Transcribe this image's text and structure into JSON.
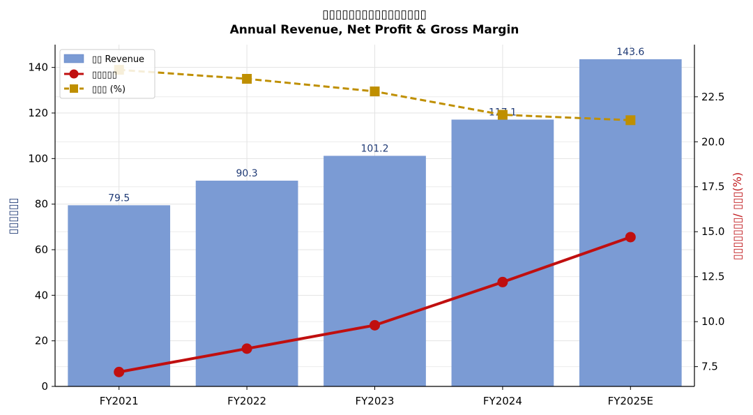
{
  "chart_data": {
    "type": "bar",
    "title": "▯▯▯▯▯▯▯▯▯▯▯▯▯▯▯▯",
    "subtitle": "Annual Revenue, Net Profit & Gross Margin",
    "categories": [
      "FY2021",
      "FY2022",
      "FY2023",
      "FY2024",
      "FY2025E"
    ],
    "ylabel_left": "▯▯▯▯▯▯",
    "ylabel_right": "▯▯▯▯▯▯▯/ ▯▯▯(%)",
    "ylim_left": [
      0,
      150
    ],
    "ylim_right": [
      6.4,
      25.4
    ],
    "yticks_left": [
      0,
      20,
      40,
      60,
      80,
      100,
      120,
      140
    ],
    "yticks_right": [
      7.5,
      10.0,
      12.5,
      15.0,
      17.5,
      20.0,
      22.5
    ],
    "grid": true,
    "legend_position": "top-left",
    "series": [
      {
        "name": "▯▯ Revenue",
        "type": "bar",
        "axis": "left",
        "values": [
          79.5,
          90.3,
          101.2,
          117.1,
          143.6
        ],
        "labels": [
          "79.5",
          "90.3",
          "101.2",
          "117.1",
          "143.6"
        ],
        "color": "#7b9bd4"
      },
      {
        "name": "▯▯▯▯▯",
        "type": "line",
        "axis": "right",
        "values": [
          7.2,
          8.5,
          9.8,
          12.2,
          14.7
        ],
        "color": "#c00f0f",
        "marker": "circle"
      },
      {
        "name": "▯▯▯ (%)",
        "type": "line",
        "axis": "right",
        "values": [
          24.0,
          23.5,
          22.8,
          21.5,
          21.2
        ],
        "color": "#bf8f00",
        "marker": "square",
        "dashed": true
      }
    ],
    "colors": {
      "left_axis_label": "#1f3a75",
      "right_axis_label": "#c0191d",
      "bar_label": "#1f3a75"
    }
  }
}
